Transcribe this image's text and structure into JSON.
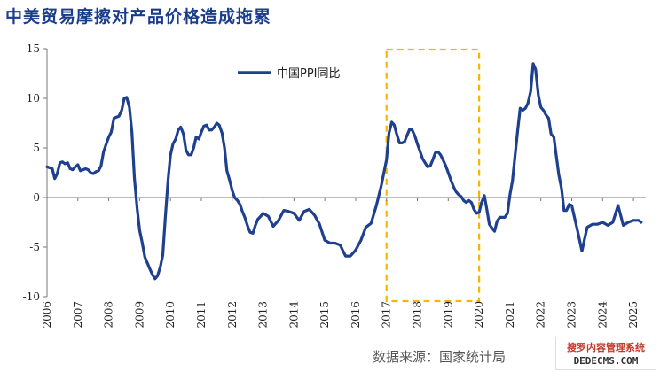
{
  "chart_data": {
    "type": "line",
    "title": "中美贸易摩擦对产品价格造成拖累",
    "xlabel": "",
    "ylabel": "",
    "xlim": [
      2006,
      2025.4
    ],
    "ylim": [
      -10,
      15
    ],
    "yticks": [
      "15",
      "10",
      "5",
      "0",
      "-5",
      "-10"
    ],
    "xticks": [
      "2006",
      "2007",
      "2008",
      "2009",
      "2010",
      "2011",
      "2012",
      "2013",
      "2014",
      "2015",
      "2016",
      "2017",
      "2018",
      "2019",
      "2020",
      "2021",
      "2022",
      "2023",
      "2024",
      "2025"
    ],
    "legend": "top-left",
    "highlight": {
      "x_from": 2017.0,
      "x_to": 2020.0,
      "style": "dashed",
      "color": "#f5b800"
    },
    "series": [
      {
        "name": "中国PPI同比",
        "color": "#1f3f8f",
        "x": [
          2006.0,
          2006.08,
          2006.17,
          2006.25,
          2006.33,
          2006.42,
          2006.5,
          2006.58,
          2006.67,
          2006.75,
          2006.83,
          2006.92,
          2007.0,
          2007.08,
          2007.17,
          2007.25,
          2007.33,
          2007.42,
          2007.5,
          2007.58,
          2007.67,
          2007.75,
          2007.83,
          2007.92,
          2008.0,
          2008.08,
          2008.17,
          2008.25,
          2008.33,
          2008.42,
          2008.5,
          2008.58,
          2008.67,
          2008.75,
          2008.83,
          2008.92,
          2009.0,
          2009.08,
          2009.17,
          2009.25,
          2009.33,
          2009.42,
          2009.5,
          2009.58,
          2009.67,
          2009.75,
          2009.83,
          2009.92,
          2010.0,
          2010.08,
          2010.17,
          2010.25,
          2010.33,
          2010.42,
          2010.5,
          2010.58,
          2010.67,
          2010.75,
          2010.83,
          2010.92,
          2011.0,
          2011.08,
          2011.17,
          2011.25,
          2011.33,
          2011.42,
          2011.5,
          2011.58,
          2011.67,
          2011.75,
          2011.83,
          2011.92,
          2012.0,
          2012.08,
          2012.17,
          2012.25,
          2012.33,
          2012.42,
          2012.5,
          2012.58,
          2012.67,
          2012.75,
          2012.83,
          2012.92,
          2013.0,
          2013.17,
          2013.33,
          2013.5,
          2013.67,
          2013.83,
          2014.0,
          2014.17,
          2014.33,
          2014.5,
          2014.67,
          2014.83,
          2015.0,
          2015.17,
          2015.33,
          2015.5,
          2015.67,
          2015.83,
          2016.0,
          2016.17,
          2016.33,
          2016.5,
          2016.67,
          2016.83,
          2017.0,
          2017.08,
          2017.17,
          2017.25,
          2017.33,
          2017.42,
          2017.5,
          2017.58,
          2017.67,
          2017.75,
          2017.83,
          2017.92,
          2018.0,
          2018.08,
          2018.17,
          2018.25,
          2018.33,
          2018.42,
          2018.5,
          2018.58,
          2018.67,
          2018.75,
          2018.83,
          2018.92,
          2019.0,
          2019.08,
          2019.17,
          2019.25,
          2019.33,
          2019.42,
          2019.5,
          2019.58,
          2019.67,
          2019.75,
          2019.83,
          2019.92,
          2020.0,
          2020.08,
          2020.17,
          2020.25,
          2020.33,
          2020.42,
          2020.5,
          2020.58,
          2020.67,
          2020.75,
          2020.83,
          2020.92,
          2021.0,
          2021.08,
          2021.17,
          2021.25,
          2021.33,
          2021.42,
          2021.5,
          2021.58,
          2021.67,
          2021.75,
          2021.83,
          2021.92,
          2022.0,
          2022.08,
          2022.17,
          2022.25,
          2022.33,
          2022.42,
          2022.5,
          2022.58,
          2022.67,
          2022.75,
          2022.83,
          2022.92,
          2023.0,
          2023.17,
          2023.33,
          2023.5,
          2023.67,
          2023.83,
          2024.0,
          2024.17,
          2024.33,
          2024.5,
          2024.67,
          2024.83,
          2025.0,
          2025.17,
          2025.25
        ],
        "values": [
          3.1,
          3.0,
          2.9,
          1.9,
          2.4,
          3.5,
          3.6,
          3.4,
          3.5,
          2.9,
          2.8,
          3.1,
          3.3,
          2.7,
          2.8,
          2.9,
          2.8,
          2.5,
          2.4,
          2.6,
          2.7,
          3.2,
          4.6,
          5.4,
          6.1,
          6.6,
          8.0,
          8.1,
          8.2,
          8.8,
          10.0,
          10.1,
          9.1,
          6.6,
          2.0,
          -1.1,
          -3.3,
          -4.5,
          -6.0,
          -6.6,
          -7.2,
          -7.8,
          -8.2,
          -7.9,
          -7.0,
          -5.8,
          -2.1,
          1.7,
          4.3,
          5.4,
          5.9,
          6.8,
          7.1,
          6.4,
          4.8,
          4.3,
          4.3,
          5.0,
          6.1,
          5.9,
          6.6,
          7.2,
          7.3,
          6.8,
          6.8,
          7.1,
          7.5,
          7.3,
          6.5,
          5.0,
          2.7,
          1.7,
          0.7,
          0.0,
          -0.3,
          -0.7,
          -1.4,
          -2.1,
          -2.9,
          -3.5,
          -3.6,
          -2.8,
          -2.2,
          -1.9,
          -1.6,
          -1.9,
          -2.9,
          -2.3,
          -1.3,
          -1.4,
          -1.6,
          -2.3,
          -1.4,
          -1.2,
          -1.8,
          -2.7,
          -4.3,
          -4.6,
          -4.6,
          -4.8,
          -5.9,
          -5.9,
          -5.3,
          -4.3,
          -3.0,
          -2.6,
          -0.8,
          1.2,
          3.8,
          6.5,
          7.6,
          7.3,
          6.4,
          5.5,
          5.5,
          5.6,
          6.3,
          6.9,
          6.8,
          6.2,
          5.4,
          4.7,
          3.9,
          3.5,
          3.1,
          3.2,
          3.8,
          4.5,
          4.6,
          4.3,
          3.8,
          3.2,
          2.5,
          1.8,
          1.1,
          0.6,
          0.3,
          0.1,
          -0.3,
          -0.5,
          -0.3,
          -0.5,
          -1.2,
          -1.6,
          -1.5,
          -0.5,
          0.2,
          -1.2,
          -2.7,
          -3.1,
          -3.4,
          -2.4,
          -2.0,
          -2.0,
          -2.0,
          -1.6,
          0.3,
          1.7,
          4.4,
          6.8,
          9.0,
          8.8,
          9.0,
          9.5,
          10.7,
          13.5,
          12.9,
          10.3,
          9.1,
          8.8,
          8.3,
          8.0,
          6.4,
          6.1,
          4.2,
          2.3,
          0.9,
          -1.3,
          -1.3,
          -0.7,
          -0.8,
          -3.1,
          -5.4,
          -3.0,
          -2.7,
          -2.7,
          -2.5,
          -2.8,
          -2.5,
          -0.8,
          -2.8,
          -2.5,
          -2.3,
          -2.3,
          -2.5
        ]
      }
    ],
    "source": "数据来源：国家统计局"
  },
  "watermark": {
    "line1": "搜罗内容管理系统",
    "line2": "DEDECMS.COM"
  }
}
